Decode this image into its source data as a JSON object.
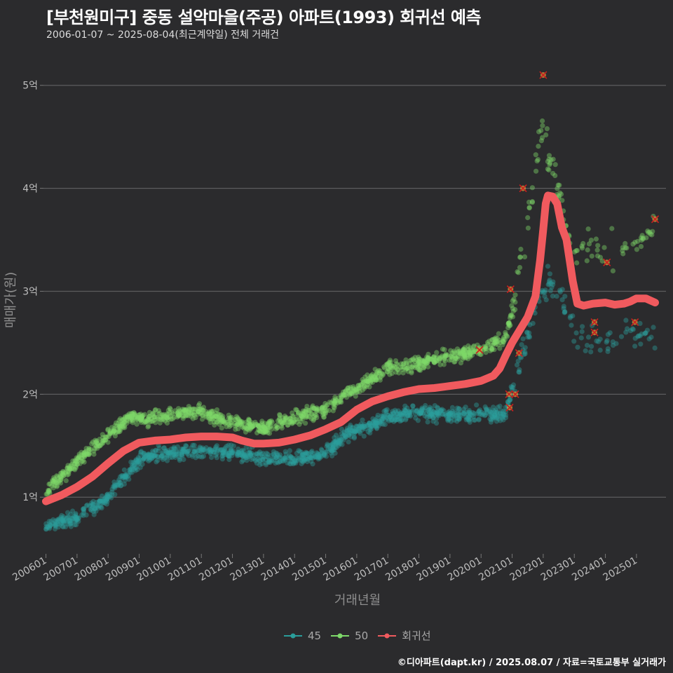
{
  "title": "[부천원미구] 중동 설악마을(주공) 아파트(1993) 회귀선 예측",
  "subtitle": "2006-01-07 ~ 2025-08-04(최근계약일) 전체 거래건",
  "caption": "©디아파트(dapt.kr) / 2025.08.07 / 자료=국토교통부 실거래가",
  "colors": {
    "background": "#2b2b2d",
    "series_45": "#2a9d9a",
    "series_50": "#7ed96a",
    "regression": "#f05a5e",
    "outlier": "#cc1f1f",
    "grid": "#5c5c5e"
  },
  "chart_data": {
    "type": "scatter",
    "xlabel": "거래년월",
    "ylabel": "매매가(원)",
    "x_ticks": [
      "200601",
      "200701",
      "200801",
      "200901",
      "201001",
      "201101",
      "201201",
      "201301",
      "201401",
      "201501",
      "201601",
      "201701",
      "201801",
      "201901",
      "202001",
      "202101",
      "202201",
      "202301",
      "202401",
      "202501"
    ],
    "y_ticks": [
      {
        "value": 1,
        "label": "1억"
      },
      {
        "value": 2,
        "label": "2억"
      },
      {
        "value": 3,
        "label": "3억"
      },
      {
        "value": 4,
        "label": "4억"
      },
      {
        "value": 5,
        "label": "5억"
      }
    ],
    "y_unit": "억원",
    "ylim": [
      0.45,
      5.25
    ],
    "xlim": [
      2005.92,
      2025.95
    ],
    "grid": "horizontal",
    "legend_position": "bottom",
    "legend": [
      "45",
      "50",
      "회귀선"
    ],
    "series": [
      {
        "name": "45",
        "type": "scatter",
        "trend": [
          [
            2006.0,
            0.72
          ],
          [
            2007.0,
            0.8
          ],
          [
            2008.0,
            1.0
          ],
          [
            2008.8,
            1.3
          ],
          [
            2009.2,
            1.4
          ],
          [
            2010.0,
            1.43
          ],
          [
            2011.0,
            1.45
          ],
          [
            2012.0,
            1.43
          ],
          [
            2013.0,
            1.38
          ],
          [
            2014.0,
            1.37
          ],
          [
            2015.0,
            1.42
          ],
          [
            2015.6,
            1.6
          ],
          [
            2016.5,
            1.7
          ],
          [
            2017.0,
            1.78
          ],
          [
            2018.0,
            1.83
          ],
          [
            2019.0,
            1.8
          ],
          [
            2020.0,
            1.8
          ],
          [
            2020.8,
            1.82
          ],
          [
            2021.0,
            2.05
          ],
          [
            2021.4,
            2.5
          ],
          [
            2021.8,
            2.9
          ],
          [
            2022.2,
            3.1
          ],
          [
            2022.6,
            2.9
          ],
          [
            2023.0,
            2.6
          ],
          [
            2024.0,
            2.5
          ],
          [
            2025.0,
            2.6
          ],
          [
            2025.6,
            2.6
          ]
        ]
      },
      {
        "name": "50",
        "type": "scatter",
        "trend": [
          [
            2006.0,
            1.05
          ],
          [
            2007.0,
            1.35
          ],
          [
            2008.0,
            1.6
          ],
          [
            2008.8,
            1.8
          ],
          [
            2009.2,
            1.75
          ],
          [
            2010.0,
            1.8
          ],
          [
            2011.0,
            1.83
          ],
          [
            2012.0,
            1.72
          ],
          [
            2013.0,
            1.67
          ],
          [
            2014.0,
            1.77
          ],
          [
            2015.0,
            1.85
          ],
          [
            2015.6,
            2.0
          ],
          [
            2016.5,
            2.15
          ],
          [
            2017.0,
            2.25
          ],
          [
            2018.0,
            2.3
          ],
          [
            2019.0,
            2.37
          ],
          [
            2020.0,
            2.42
          ],
          [
            2020.8,
            2.55
          ],
          [
            2021.0,
            2.8
          ],
          [
            2021.4,
            3.5
          ],
          [
            2021.7,
            4.1
          ],
          [
            2022.0,
            4.6
          ],
          [
            2022.2,
            4.3
          ],
          [
            2022.6,
            3.8
          ],
          [
            2023.0,
            3.4
          ],
          [
            2024.0,
            3.35
          ],
          [
            2025.0,
            3.45
          ],
          [
            2025.6,
            3.55
          ]
        ]
      },
      {
        "name": "회귀선",
        "type": "line",
        "points": [
          [
            2006.0,
            0.96
          ],
          [
            2006.5,
            1.02
          ],
          [
            2007.0,
            1.1
          ],
          [
            2007.5,
            1.2
          ],
          [
            2008.0,
            1.33
          ],
          [
            2008.5,
            1.45
          ],
          [
            2009.0,
            1.53
          ],
          [
            2009.5,
            1.55
          ],
          [
            2010.0,
            1.56
          ],
          [
            2010.5,
            1.58
          ],
          [
            2011.0,
            1.59
          ],
          [
            2011.5,
            1.59
          ],
          [
            2012.0,
            1.58
          ],
          [
            2012.3,
            1.55
          ],
          [
            2012.7,
            1.52
          ],
          [
            2013.0,
            1.52
          ],
          [
            2013.5,
            1.53
          ],
          [
            2014.0,
            1.56
          ],
          [
            2014.5,
            1.6
          ],
          [
            2015.0,
            1.66
          ],
          [
            2015.5,
            1.73
          ],
          [
            2016.0,
            1.85
          ],
          [
            2016.5,
            1.93
          ],
          [
            2017.0,
            1.98
          ],
          [
            2017.5,
            2.02
          ],
          [
            2018.0,
            2.05
          ],
          [
            2018.5,
            2.06
          ],
          [
            2019.0,
            2.08
          ],
          [
            2019.5,
            2.1
          ],
          [
            2020.0,
            2.13
          ],
          [
            2020.4,
            2.18
          ],
          [
            2020.6,
            2.25
          ],
          [
            2020.8,
            2.38
          ],
          [
            2021.0,
            2.5
          ],
          [
            2021.2,
            2.6
          ],
          [
            2021.5,
            2.75
          ],
          [
            2021.75,
            2.95
          ],
          [
            2021.9,
            3.3
          ],
          [
            2022.0,
            3.6
          ],
          [
            2022.08,
            3.85
          ],
          [
            2022.15,
            3.93
          ],
          [
            2022.3,
            3.92
          ],
          [
            2022.45,
            3.85
          ],
          [
            2022.6,
            3.62
          ],
          [
            2022.75,
            3.5
          ],
          [
            2022.85,
            3.3
          ],
          [
            2022.95,
            3.1
          ],
          [
            2023.1,
            2.88
          ],
          [
            2023.3,
            2.86
          ],
          [
            2023.6,
            2.88
          ],
          [
            2024.0,
            2.89
          ],
          [
            2024.3,
            2.87
          ],
          [
            2024.6,
            2.88
          ],
          [
            2024.8,
            2.9
          ],
          [
            2025.0,
            2.93
          ],
          [
            2025.3,
            2.93
          ],
          [
            2025.6,
            2.89
          ]
        ]
      }
    ],
    "outliers": [
      [
        2022.0,
        5.1
      ],
      [
        2021.35,
        4.0
      ],
      [
        2020.95,
        3.02
      ],
      [
        2024.05,
        3.28
      ],
      [
        2025.6,
        3.7
      ],
      [
        2019.95,
        2.43
      ],
      [
        2021.22,
        2.4
      ],
      [
        2023.65,
        2.7
      ],
      [
        2023.65,
        2.6
      ],
      [
        2024.95,
        2.7
      ],
      [
        2020.9,
        2.0
      ],
      [
        2021.1,
        2.0
      ],
      [
        2020.92,
        1.87
      ]
    ]
  }
}
